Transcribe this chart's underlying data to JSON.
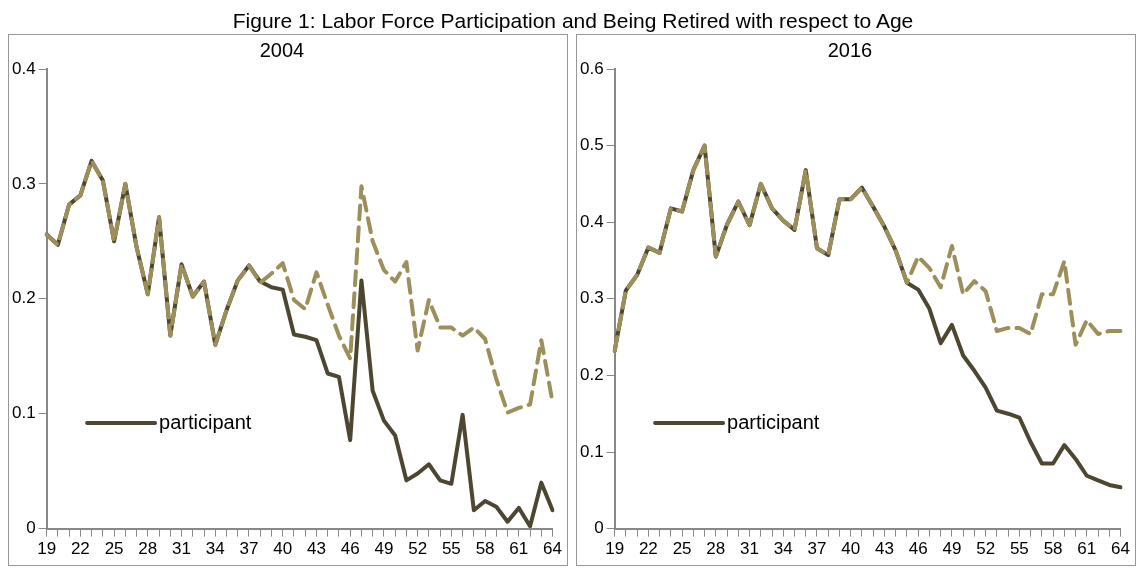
{
  "chart_data": [
    {
      "type": "line",
      "title": "2004",
      "annotations": [
        "Figure 1: Labor Force Participation and Being Retired with respect to Age"
      ],
      "categories": [
        "19",
        null,
        null,
        "22",
        null,
        null,
        "25",
        null,
        null,
        "28",
        null,
        null,
        "31",
        null,
        null,
        "34",
        null,
        null,
        "37",
        null,
        null,
        "40",
        null,
        null,
        "43",
        null,
        null,
        "46",
        null,
        null,
        "49",
        null,
        null,
        "52",
        null,
        null,
        "55",
        null,
        null,
        "58",
        null,
        null,
        "61",
        null,
        null,
        "64"
      ],
      "series": [
        {
          "type": "line",
          "name": "participant",
          "color": "#4d4630",
          "line_style": "solid",
          "values": [
            0.256,
            0.247,
            0.282,
            0.29,
            0.32,
            0.303,
            0.25,
            0.3,
            0.245,
            0.204,
            0.271,
            0.168,
            0.23,
            0.202,
            0.215,
            0.16,
            0.19,
            0.216,
            0.229,
            0.215,
            0.21,
            0.208,
            0.169,
            0.167,
            0.164,
            0.135,
            0.132,
            0.077,
            0.216,
            0.12,
            0.094,
            0.081,
            0.042,
            0.048,
            0.056,
            0.042,
            0.039,
            0.099,
            0.016,
            0.024,
            0.019,
            0.006,
            0.018,
            0.002,
            0.04,
            0.016
          ]
        },
        {
          "type": "line",
          "color": "#9c8f5a",
          "line_style": "dashed",
          "values": [
            0.256,
            0.247,
            0.282,
            0.29,
            0.32,
            0.303,
            0.25,
            0.3,
            0.245,
            0.204,
            0.271,
            0.168,
            0.23,
            0.202,
            0.215,
            0.16,
            0.19,
            0.216,
            0.229,
            0.214,
            0.222,
            0.231,
            0.199,
            0.191,
            0.223,
            0.195,
            0.168,
            0.148,
            0.298,
            0.25,
            0.225,
            0.215,
            0.232,
            0.155,
            0.199,
            0.175,
            0.175,
            0.168,
            0.175,
            0.165,
            0.13,
            0.101,
            0.105,
            0.108,
            0.164,
            0.11
          ]
        }
      ],
      "ylim": [
        0,
        0.4
      ],
      "yticks": [
        0,
        0.1,
        0.2,
        0.3,
        0.4
      ],
      "grid": false,
      "legend": "left",
      "marker": "none"
    },
    {
      "type": "line",
      "title": "2016",
      "categories": [
        "19",
        null,
        null,
        "22",
        null,
        null,
        "25",
        null,
        null,
        "28",
        null,
        null,
        "31",
        null,
        null,
        "34",
        null,
        null,
        "37",
        null,
        null,
        "40",
        null,
        null,
        "43",
        null,
        null,
        "46",
        null,
        null,
        "49",
        null,
        null,
        "52",
        null,
        null,
        "55",
        null,
        null,
        "58",
        null,
        null,
        "61",
        null,
        null,
        "64"
      ],
      "series": [
        {
          "type": "line",
          "name": "participant",
          "color": "#4d4630",
          "line_style": "solid",
          "values": [
            0.232,
            0.311,
            0.331,
            0.367,
            0.36,
            0.418,
            0.414,
            0.468,
            0.5,
            0.355,
            0.397,
            0.427,
            0.396,
            0.45,
            0.418,
            0.402,
            0.39,
            0.468,
            0.366,
            0.357,
            0.43,
            0.43,
            0.445,
            0.42,
            0.394,
            0.363,
            0.321,
            0.312,
            0.287,
            0.242,
            0.266,
            0.226,
            0.206,
            0.184,
            0.154,
            0.15,
            0.145,
            0.113,
            0.085,
            0.085,
            0.109,
            0.091,
            0.069,
            0.063,
            0.057,
            0.054
          ]
        },
        {
          "type": "line",
          "color": "#9c8f5a",
          "line_style": "dashed",
          "values": [
            0.232,
            0.311,
            0.331,
            0.367,
            0.36,
            0.418,
            0.414,
            0.468,
            0.5,
            0.355,
            0.397,
            0.427,
            0.396,
            0.45,
            0.418,
            0.402,
            0.39,
            0.468,
            0.366,
            0.357,
            0.43,
            0.43,
            0.445,
            0.42,
            0.394,
            0.363,
            0.321,
            0.355,
            0.34,
            0.315,
            0.369,
            0.306,
            0.323,
            0.31,
            0.258,
            0.262,
            0.262,
            0.254,
            0.306,
            0.306,
            0.349,
            0.24,
            0.272,
            0.254,
            0.258,
            0.258
          ]
        }
      ],
      "ylim": [
        0,
        0.6
      ],
      "yticks": [
        0,
        0.1,
        0.2,
        0.3,
        0.4,
        0.5,
        0.6
      ],
      "grid": false,
      "legend": "left",
      "marker": "none"
    }
  ]
}
